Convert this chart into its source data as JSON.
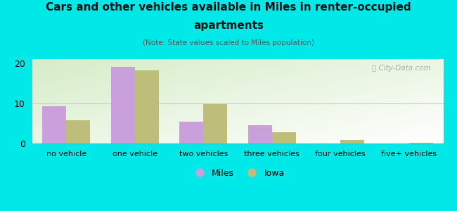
{
  "title_line1": "Cars and other vehicles available in Miles in renter-occupied",
  "title_line2": "apartments",
  "subtitle": "(Note: State values scaled to Miles population)",
  "categories": [
    "no vehicle",
    "one vehicle",
    "two vehicles",
    "three vehicles",
    "four vehicles",
    "five+ vehicles"
  ],
  "miles_values": [
    9.3,
    19.0,
    5.5,
    4.5,
    0.0,
    0.0
  ],
  "iowa_values": [
    5.8,
    18.2,
    9.8,
    2.8,
    0.9,
    0.2
  ],
  "miles_color": "#c9a0dc",
  "iowa_color": "#bfbd7a",
  "background_color": "#00e8e8",
  "ylim": [
    0,
    21
  ],
  "yticks": [
    0,
    10,
    20
  ],
  "bar_width": 0.35,
  "legend_labels": [
    "Miles",
    "Iowa"
  ],
  "watermark": "City-Data.com",
  "grid_color": "#cccccc",
  "title_fontsize": 11,
  "subtitle_fontsize": 7.5,
  "tick_fontsize": 8,
  "ytick_fontsize": 9
}
